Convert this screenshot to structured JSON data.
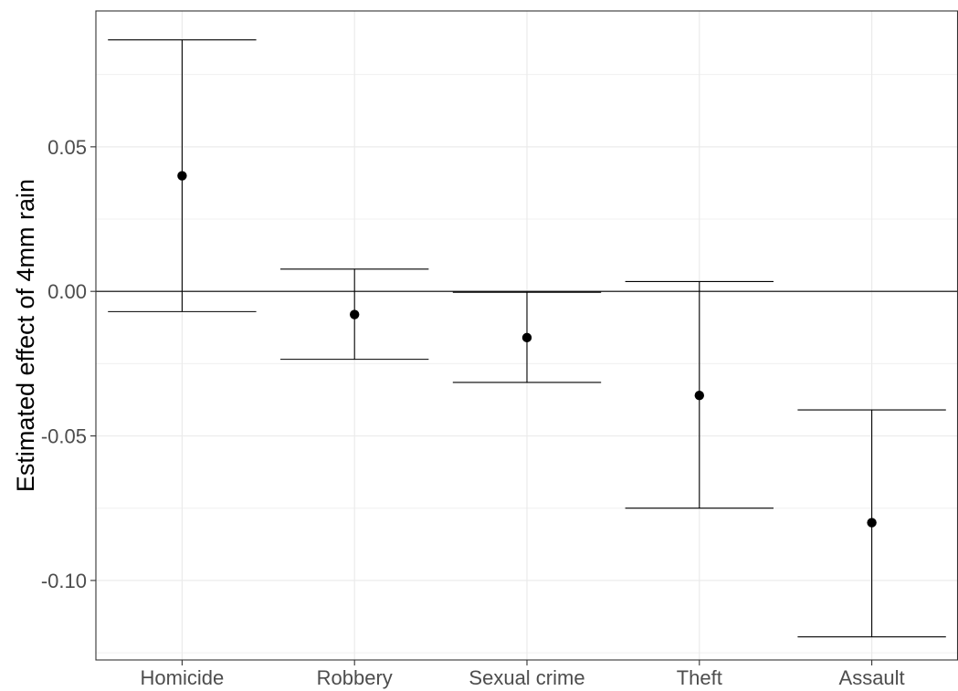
{
  "chart_data": {
    "type": "scatter",
    "title": "",
    "xlabel": "",
    "ylabel": "Estimated effect of 4mm rain",
    "categories": [
      "Homicide",
      "Robbery",
      "Sexual crime",
      "Theft",
      "Assault"
    ],
    "estimates": [
      0.04,
      -0.008,
      -0.016,
      -0.036,
      -0.08
    ],
    "ci_lower": [
      -0.007,
      -0.0235,
      -0.0315,
      -0.075,
      -0.1195
    ],
    "ci_upper": [
      0.087,
      0.0077,
      -0.0003,
      0.0034,
      -0.041
    ],
    "y_ticks": [
      0.05,
      0.0,
      -0.05,
      -0.1
    ],
    "y_tick_labels": [
      "0.05",
      "0.00",
      "-0.05",
      "-0.10"
    ],
    "ylim": [
      -0.1275,
      0.097
    ],
    "reference_line": 0,
    "grid": true,
    "legend": "none"
  }
}
